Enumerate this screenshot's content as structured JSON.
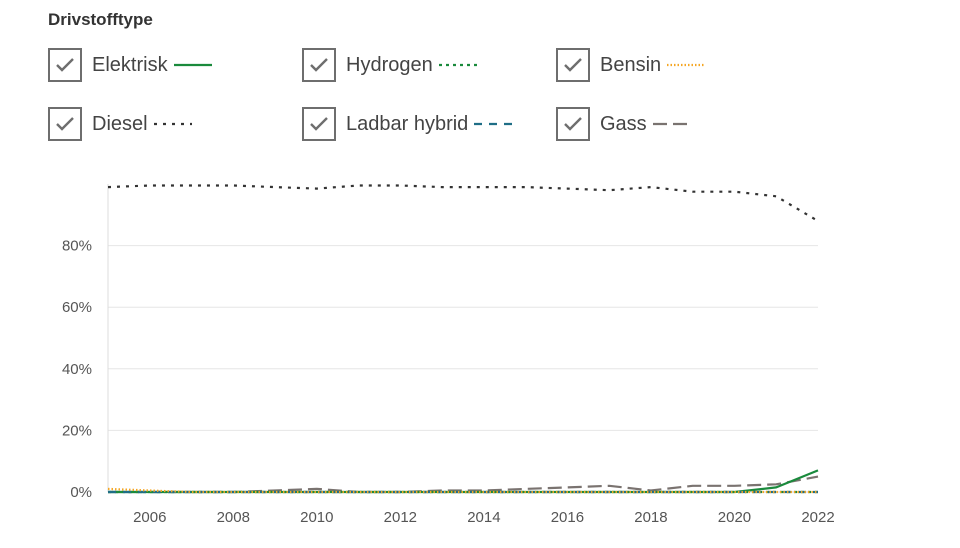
{
  "legend": {
    "heading": "Drivstofftype",
    "items": [
      {
        "key": "elektrisk",
        "label": "Elektrisk",
        "color": "#1a8a3c",
        "dash": "solid",
        "checked": true
      },
      {
        "key": "hydrogen",
        "label": "Hydrogen",
        "color": "#1a8a3c",
        "dash": "dotted-short",
        "checked": true
      },
      {
        "key": "bensin",
        "label": "Bensin",
        "color": "#f5a623",
        "dash": "dotted",
        "checked": true
      },
      {
        "key": "diesel",
        "label": "Diesel",
        "color": "#333333",
        "dash": "dotted-wide",
        "checked": true
      },
      {
        "key": "ladbar",
        "label": "Ladbar hybrid",
        "color": "#1f6e86",
        "dash": "dashed",
        "checked": true
      },
      {
        "key": "gass",
        "label": "Gass",
        "color": "#7a7370",
        "dash": "long-dash",
        "checked": true
      }
    ]
  },
  "chart_data": {
    "type": "line",
    "x": [
      2005,
      2006,
      2007,
      2008,
      2009,
      2010,
      2011,
      2012,
      2013,
      2014,
      2015,
      2016,
      2017,
      2018,
      2019,
      2020,
      2021,
      2022
    ],
    "xticks": [
      "2006",
      "2008",
      "2010",
      "2012",
      "2014",
      "2016",
      "2018",
      "2020",
      "2022"
    ],
    "yticks": [
      "0%",
      "20%",
      "40%",
      "60%",
      "80%"
    ],
    "ylim": [
      0,
      100
    ],
    "grid": true,
    "series": [
      {
        "name": "Diesel",
        "values": [
          99,
          99.5,
          99.5,
          99.5,
          99,
          98.5,
          99.5,
          99.5,
          99,
          99,
          99,
          98.5,
          98,
          99,
          97.5,
          97.5,
          96,
          88
        ]
      },
      {
        "name": "Gass",
        "values": [
          0,
          0,
          0,
          0,
          0.5,
          1,
          0,
          0,
          0.5,
          0.5,
          1,
          1.5,
          2,
          0.5,
          2,
          2,
          2.5,
          5
        ]
      },
      {
        "name": "Elektrisk",
        "values": [
          0,
          0,
          0,
          0,
          0,
          0,
          0,
          0,
          0,
          0,
          0,
          0,
          0,
          0,
          0,
          0,
          1.5,
          7
        ]
      },
      {
        "name": "Hydrogen",
        "values": [
          0,
          0,
          0,
          0,
          0,
          0,
          0,
          0,
          0,
          0,
          0,
          0,
          0,
          0,
          0,
          0,
          0,
          0
        ]
      },
      {
        "name": "Ladbar hybrid",
        "values": [
          0,
          0,
          0,
          0,
          0,
          0,
          0,
          0,
          0,
          0,
          0,
          0,
          0,
          0,
          0,
          0,
          0,
          0
        ]
      },
      {
        "name": "Bensin",
        "values": [
          1,
          0.5,
          0,
          0,
          0,
          0,
          0,
          0,
          0,
          0,
          0,
          0,
          0,
          0,
          0,
          0,
          0,
          0
        ]
      }
    ]
  }
}
